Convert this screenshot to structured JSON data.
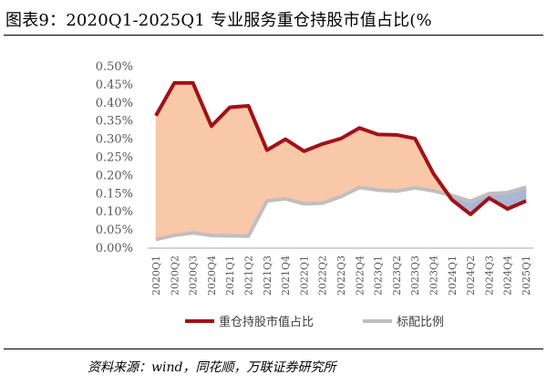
{
  "title": "图表9：2020Q1-2025Q1 专业服务重仓持股市值占比(%",
  "source": "资料来源：wind，同花顺，万联证券研究所",
  "chart_data": {
    "type": "line",
    "categories": [
      "2020Q1",
      "2020Q2",
      "2020Q3",
      "2020Q4",
      "2021Q1",
      "2021Q2",
      "2021Q3",
      "2021Q4",
      "2022Q1",
      "2022Q2",
      "2022Q3",
      "2022Q4",
      "2023Q1",
      "2023Q2",
      "2023Q3",
      "2023Q4",
      "2024Q1",
      "2024Q2",
      "2024Q3",
      "2024Q4",
      "2025Q1"
    ],
    "series": [
      {
        "name": "重仓持股市值占比",
        "color": "#a50f15",
        "values": [
          0.365,
          0.455,
          0.455,
          0.336,
          0.388,
          0.392,
          0.27,
          0.3,
          0.267,
          0.287,
          0.302,
          0.331,
          0.313,
          0.312,
          0.302,
          0.205,
          0.133,
          0.093,
          0.138,
          0.108,
          0.13
        ]
      },
      {
        "name": "标配比例",
        "color": "#bfbfbf",
        "values": [
          0.024,
          0.035,
          0.042,
          0.035,
          0.034,
          0.033,
          0.13,
          0.136,
          0.122,
          0.124,
          0.142,
          0.167,
          0.16,
          0.157,
          0.166,
          0.158,
          0.145,
          0.129,
          0.15,
          0.153,
          0.168
        ]
      }
    ],
    "fill_over": "#f8c8a8",
    "fill_under": "#aab7d6",
    "ylim": [
      0,
      0.5
    ],
    "yticks": [
      "0.00%",
      "0.05%",
      "0.10%",
      "0.15%",
      "0.20%",
      "0.25%",
      "0.30%",
      "0.35%",
      "0.40%",
      "0.45%",
      "0.50%"
    ],
    "legend_position": "bottom",
    "grid": false
  }
}
